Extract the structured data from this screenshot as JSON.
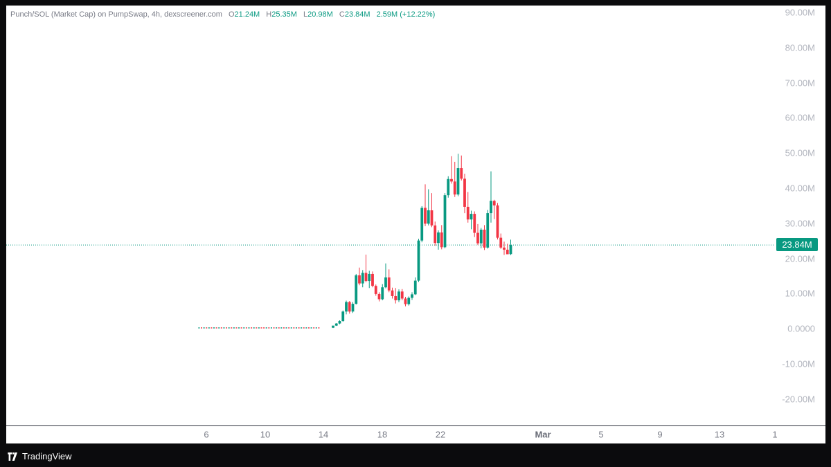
{
  "legend": {
    "title": "Punch/SOL (Market Cap) on PumpSwap, 4h, dexscreener.com",
    "o_key": "O",
    "o_val": "21.24M",
    "h_key": "H",
    "h_val": "25.35M",
    "l_key": "L",
    "l_val": "20.98M",
    "c_key": "C",
    "c_val": "23.84M",
    "change": "2.59M (+12.22%)"
  },
  "price_tag": "23.84M",
  "footer": {
    "brand": "TradingView"
  },
  "colors": {
    "up": "#089981",
    "down": "#f23645",
    "last_line": "#089981"
  },
  "chart_data": {
    "type": "candlestick",
    "title": "Punch/SOL (Market Cap) on PumpSwap, 4h, dexscreener.com",
    "ylim": [
      -27000000,
      92000000
    ],
    "y_ticks": [
      "90.00M",
      "80.00M",
      "70.00M",
      "60.00M",
      "50.00M",
      "40.00M",
      "30.00M",
      "20.00M",
      "10.00M",
      "0.0000",
      "-10.00M",
      "-20.00M"
    ],
    "x_ticks": [
      "6",
      "10",
      "14",
      "18",
      "22",
      "Mar",
      "5",
      "9",
      "13",
      "1"
    ],
    "last_price": 23840000,
    "flat_section": {
      "from_day": 5.5,
      "to_day": 13.7,
      "value": 200000
    },
    "candles": [
      [
        0.3,
        0.8,
        0.2,
        0.9
      ],
      [
        0.9,
        1.6,
        0.8,
        1.5
      ],
      [
        1.5,
        2.4,
        1.3,
        2.2
      ],
      [
        2.2,
        5.2,
        2.0,
        4.9
      ],
      [
        4.9,
        8.0,
        4.1,
        7.6
      ],
      [
        7.6,
        7.9,
        4.3,
        4.9
      ],
      [
        4.9,
        7.6,
        4.5,
        7.1
      ],
      [
        7.1,
        15.6,
        6.9,
        15.2
      ],
      [
        15.2,
        17.4,
        12.4,
        12.9
      ],
      [
        12.9,
        16.7,
        11.8,
        15.9
      ],
      [
        15.9,
        21.1,
        13.2,
        13.6
      ],
      [
        13.6,
        16.5,
        11.6,
        15.6
      ],
      [
        15.6,
        16.3,
        11.8,
        12.2
      ],
      [
        12.2,
        12.6,
        9.4,
        9.9
      ],
      [
        9.9,
        10.4,
        7.8,
        8.4
      ],
      [
        8.4,
        12.7,
        8.1,
        11.8
      ],
      [
        11.8,
        18.6,
        11.5,
        14.6
      ],
      [
        14.6,
        16.9,
        10.4,
        10.9
      ],
      [
        10.9,
        11.7,
        8.6,
        9.3
      ],
      [
        9.3,
        11.6,
        7.2,
        8.1
      ],
      [
        8.1,
        11.2,
        7.6,
        10.6
      ],
      [
        10.6,
        11.3,
        8.1,
        8.6
      ],
      [
        8.6,
        9.1,
        6.4,
        7.0
      ],
      [
        7.0,
        9.2,
        6.6,
        8.8
      ],
      [
        8.8,
        10.4,
        8.2,
        9.8
      ],
      [
        9.8,
        14.6,
        9.6,
        13.7
      ],
      [
        13.7,
        25.6,
        13.3,
        25.1
      ],
      [
        25.1,
        34.9,
        24.6,
        34.4
      ],
      [
        34.4,
        41.1,
        29.2,
        29.9
      ],
      [
        29.9,
        39.7,
        29.4,
        33.7
      ],
      [
        33.7,
        38.6,
        28.9,
        29.4
      ],
      [
        29.4,
        30.5,
        23.6,
        24.4
      ],
      [
        24.4,
        28.0,
        22.5,
        27.4
      ],
      [
        27.4,
        29.5,
        22.6,
        23.2
      ],
      [
        23.2,
        38.6,
        22.9,
        38.0
      ],
      [
        38.0,
        43.4,
        37.3,
        42.6
      ],
      [
        42.6,
        49.1,
        41.3,
        41.9
      ],
      [
        41.9,
        47.5,
        37.5,
        38.2
      ],
      [
        38.2,
        49.8,
        37.7,
        45.7
      ],
      [
        45.7,
        49.3,
        42.2,
        42.7
      ],
      [
        42.7,
        44.1,
        32.9,
        34.7
      ],
      [
        34.7,
        38.9,
        30.2,
        31.1
      ],
      [
        31.1,
        33.6,
        28.3,
        32.7
      ],
      [
        32.7,
        33.4,
        26.1,
        27.3
      ],
      [
        27.3,
        29.8,
        23.8,
        24.3
      ],
      [
        24.3,
        28.7,
        22.9,
        28.2
      ],
      [
        28.2,
        29.5,
        22.4,
        23.1
      ],
      [
        23.1,
        33.8,
        22.8,
        32.9
      ],
      [
        32.9,
        44.8,
        30.2,
        36.4
      ],
      [
        36.4,
        36.7,
        31.2,
        35.1
      ],
      [
        35.1,
        35.8,
        25.4,
        25.9
      ],
      [
        25.9,
        27.1,
        22.7,
        23.1
      ],
      [
        23.1,
        24.8,
        21.0,
        22.5
      ],
      [
        22.5,
        24.2,
        21.3,
        21.2
      ],
      [
        21.24,
        25.35,
        20.98,
        23.84
      ]
    ]
  }
}
